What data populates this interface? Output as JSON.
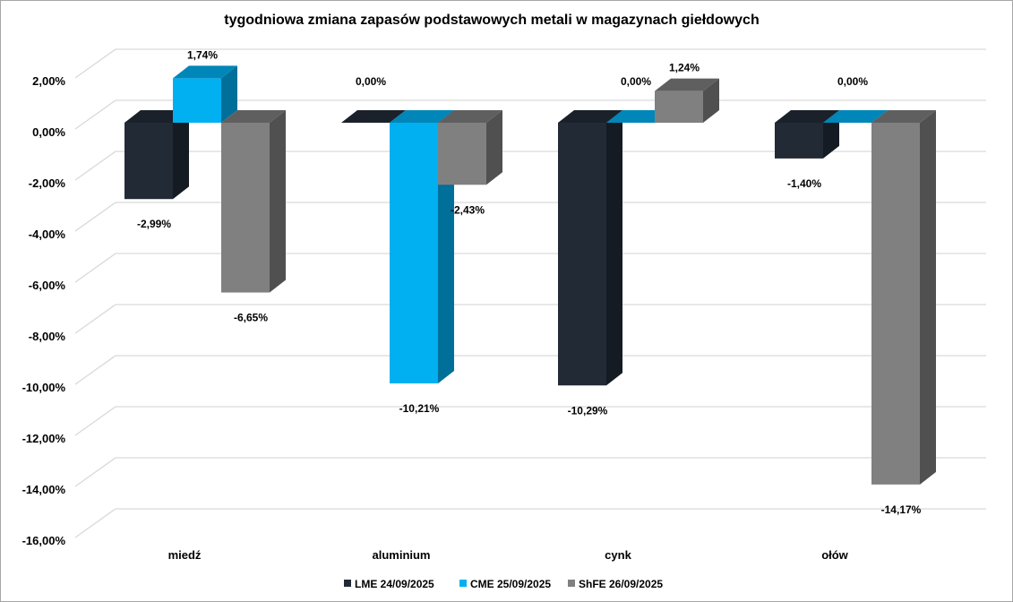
{
  "chart_data": {
    "type": "bar",
    "title": "tygodniowa zmiana zapasów podstawowych metali w magazynach giełdowych",
    "categories": [
      "miedź",
      "aluminium",
      "cynk",
      "ołów"
    ],
    "series": [
      {
        "name": "LME 24/09/2025",
        "color": "#222a35",
        "side": "#151b23",
        "top": "#1a212a",
        "values": [
          -2.99,
          0.0,
          -10.29,
          -1.4
        ],
        "labels": [
          "-2,99%",
          "0,00%",
          "-10,29%",
          "-1,40%"
        ]
      },
      {
        "name": "CME 25/09/2025",
        "color": "#00b0f0",
        "side": "#006f99",
        "top": "#0086b8",
        "values": [
          1.74,
          -10.21,
          0.0,
          0.0
        ],
        "labels": [
          "1,74%",
          "-10,21%",
          "0,00%",
          "0,00%"
        ]
      },
      {
        "name": "ShFE 26/09/2025",
        "color": "#808080",
        "side": "#505050",
        "top": "#5f5f5f",
        "values": [
          -6.65,
          -2.43,
          1.24,
          -14.17
        ],
        "labels": [
          "-6,65%",
          "-2,43%",
          "1,24%",
          "-14,17%"
        ]
      }
    ],
    "yticks": [
      2,
      0,
      -2,
      -4,
      -6,
      -8,
      -10,
      -12,
      -14,
      -16
    ],
    "ytick_labels": [
      "2,00%",
      "0,00%",
      "-2,00%",
      "-4,00%",
      "-6,00%",
      "-8,00%",
      "-10,00%",
      "-12,00%",
      "-14,00%",
      "-16,00%"
    ],
    "ylim": [
      -16,
      2
    ],
    "grid": true,
    "legend_position": "bottom"
  }
}
